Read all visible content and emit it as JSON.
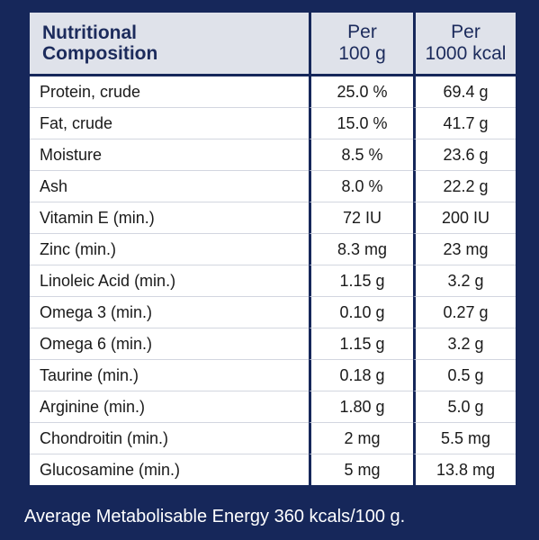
{
  "table": {
    "headers": {
      "label_line1": "Nutritional",
      "label_line2": "Composition",
      "per100_line1": "Per",
      "per100_line2": "100 g",
      "per1000_line1": "Per",
      "per1000_line2": "1000 kcal"
    },
    "rows": [
      {
        "nutrient": "Protein, crude",
        "per_100g": "25.0 %",
        "per_1000kcal": "69.4 g"
      },
      {
        "nutrient": "Fat, crude",
        "per_100g": "15.0 %",
        "per_1000kcal": "41.7 g"
      },
      {
        "nutrient": "Moisture",
        "per_100g": "8.5 %",
        "per_1000kcal": "23.6 g"
      },
      {
        "nutrient": "Ash",
        "per_100g": "8.0 %",
        "per_1000kcal": "22.2 g"
      },
      {
        "nutrient": "Vitamin E (min.)",
        "per_100g": "72 IU",
        "per_1000kcal": "200 IU"
      },
      {
        "nutrient": "Zinc (min.)",
        "per_100g": "8.3 mg",
        "per_1000kcal": "23 mg"
      },
      {
        "nutrient": "Linoleic Acid (min.)",
        "per_100g": "1.15 g",
        "per_1000kcal": "3.2 g"
      },
      {
        "nutrient": "Omega 3 (min.)",
        "per_100g": "0.10 g",
        "per_1000kcal": "0.27 g"
      },
      {
        "nutrient": "Omega 6 (min.)",
        "per_100g": "1.15 g",
        "per_1000kcal": "3.2 g"
      },
      {
        "nutrient": "Taurine (min.)",
        "per_100g": "0.18 g",
        "per_1000kcal": "0.5 g"
      },
      {
        "nutrient": "Arginine (min.)",
        "per_100g": "1.80 g",
        "per_1000kcal": "5.0 g"
      },
      {
        "nutrient": "Chondroitin (min.)",
        "per_100g": "2 mg",
        "per_1000kcal": "5.5 mg"
      },
      {
        "nutrient": "Glucosamine (min.)",
        "per_100g": "5 mg",
        "per_1000kcal": "13.8 mg"
      }
    ]
  },
  "footnote": "Average Metabolisable Energy 360 kcals/100 g.",
  "colors": {
    "background": "#16275a",
    "header_bg": "#dfe2ea",
    "header_text": "#1c2b5c",
    "cell_bg": "#ffffff"
  }
}
